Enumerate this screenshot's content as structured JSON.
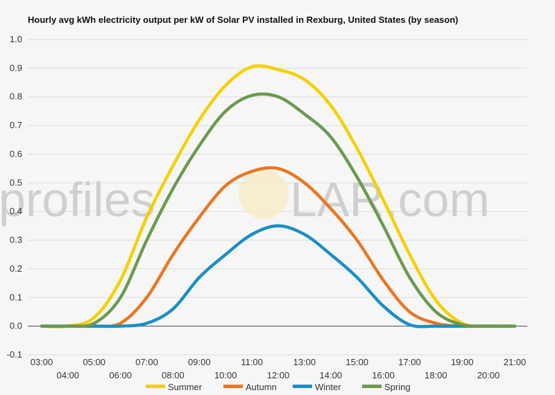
{
  "watermark": {
    "left": "profiles",
    "right": "LAR.com"
  },
  "chart_data": {
    "type": "line",
    "title": "Hourly avg kWh electricity output per kW of Solar PV installed in Rexburg, United States (by season)",
    "xlabel": "",
    "ylabel": "",
    "x": [
      "03:00",
      "04:00",
      "05:00",
      "06:00",
      "07:00",
      "08:00",
      "09:00",
      "10:00",
      "11:00",
      "12:00",
      "13:00",
      "14:00",
      "15:00",
      "16:00",
      "17:00",
      "18:00",
      "19:00",
      "20:00",
      "21:00"
    ],
    "ylim": [
      -0.1,
      1.0
    ],
    "yticks": [
      "-0.1",
      "0.0",
      "0.1",
      "0.2",
      "0.3",
      "0.4",
      "0.5",
      "0.6",
      "0.7",
      "0.8",
      "0.9",
      "1.0"
    ],
    "grid": true,
    "legend_position": "bottom",
    "series": [
      {
        "name": "Summer",
        "color": "#f5d000",
        "values": [
          0.0,
          0.0,
          0.03,
          0.16,
          0.38,
          0.56,
          0.72,
          0.84,
          0.905,
          0.895,
          0.86,
          0.77,
          0.62,
          0.44,
          0.25,
          0.09,
          0.01,
          0.0,
          0.0
        ]
      },
      {
        "name": "Autumn",
        "color": "#e87722",
        "values": [
          0.0,
          0.0,
          0.0,
          0.01,
          0.1,
          0.25,
          0.38,
          0.49,
          0.54,
          0.55,
          0.5,
          0.41,
          0.3,
          0.16,
          0.05,
          0.01,
          0.0,
          0.0,
          0.0
        ]
      },
      {
        "name": "Winter",
        "color": "#1a8fc5",
        "values": [
          0.0,
          0.0,
          0.0,
          0.0,
          0.01,
          0.06,
          0.17,
          0.25,
          0.32,
          0.35,
          0.32,
          0.25,
          0.17,
          0.07,
          0.005,
          0.0,
          0.0,
          0.0,
          0.0
        ]
      },
      {
        "name": "Spring",
        "color": "#6b9a50",
        "values": [
          0.0,
          0.0,
          0.01,
          0.1,
          0.3,
          0.48,
          0.63,
          0.75,
          0.805,
          0.8,
          0.74,
          0.66,
          0.52,
          0.35,
          0.17,
          0.05,
          0.005,
          0.0,
          0.0
        ]
      }
    ]
  }
}
